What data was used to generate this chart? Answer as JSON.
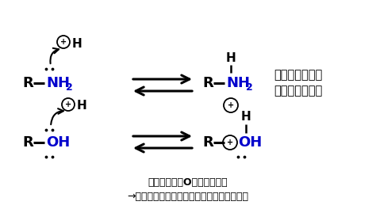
{
  "bg_color": "#ffffff",
  "fig_width": 4.74,
  "fig_height": 2.64,
  "dpi": 100,
  "blue": "#0000cc",
  "black": "#000000",
  "comment_line1": "アミンのほうが",
  "comment_line2": "塗基性が高い！",
  "bottom_line1": "電気陰性度がOのほうが高い",
  "bottom_line2": "→マイナスになりやすくプラスになりにくい"
}
